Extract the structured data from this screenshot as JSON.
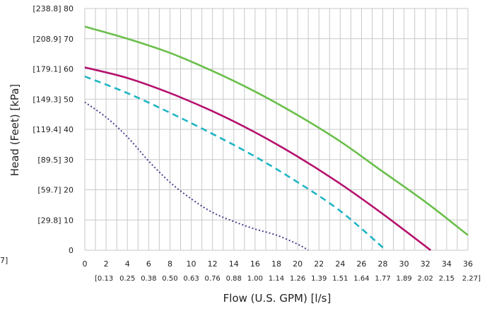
{
  "chart_data": {
    "type": "line",
    "xlabel": "Flow (U.S. GPM) [l/s]",
    "ylabel": "Head (Feet) [kPa]",
    "xlim": [
      0,
      36
    ],
    "ylim": [
      0,
      80
    ],
    "grid": true,
    "x_ticks": [
      "0",
      "2",
      "4",
      "6",
      "8",
      "10",
      "12",
      "14",
      "16",
      "18",
      "20",
      "22",
      "24",
      "26",
      "28",
      "30",
      "32",
      "34",
      "36"
    ],
    "x_ticks_secondary": [
      "[0.13",
      "0.25",
      "0.38",
      "0.50",
      "0.63",
      "0.76",
      "0.88",
      "1.00",
      "1.14",
      "1.26",
      "1.39",
      "1.51",
      "1.64",
      "1.77",
      "1.89",
      "2.02",
      "2.15",
      "2.27]"
    ],
    "y_ticks": [
      {
        "value": 0,
        "label": "0"
      },
      {
        "value": 10,
        "label": "[29.8] 10"
      },
      {
        "value": 20,
        "label": "[59.7] 20"
      },
      {
        "value": 30,
        "label": "[89.5]  30"
      },
      {
        "value": 40,
        "label": "[119.4] 40"
      },
      {
        "value": 50,
        "label": "[149.3] 50"
      },
      {
        "value": 60,
        "label": "[179.1] 60"
      },
      {
        "value": 70,
        "label": "[208.9] 70"
      },
      {
        "value": 80,
        "label": "[238.8] 80"
      }
    ],
    "left_edge_fragment": "7]",
    "series": [
      {
        "color": "#6abf4b",
        "dash": "solid",
        "x": [
          0,
          4,
          8,
          12,
          16,
          20,
          24,
          28,
          32,
          36
        ],
        "y": [
          74,
          70,
          65.3,
          59.3,
          52.5,
          44.7,
          36,
          26,
          16,
          5
        ]
      },
      {
        "color": "#b5126e",
        "dash": "solid",
        "x": [
          0,
          4,
          8,
          12,
          16,
          20,
          24,
          28,
          32.5
        ],
        "y": [
          60.5,
          57,
          52,
          46,
          39,
          31,
          22,
          12,
          0
        ]
      },
      {
        "color": "#1fb5c4",
        "dash": "dashed",
        "x": [
          0,
          4,
          8,
          12,
          16,
          20,
          24,
          28.3
        ],
        "y": [
          57.5,
          52,
          45.5,
          38.5,
          31,
          22.5,
          13,
          0
        ]
      },
      {
        "color": "#4b3d8f",
        "dash": "dotted",
        "x": [
          0,
          2,
          4,
          6,
          8,
          10,
          12,
          14,
          16,
          18,
          20,
          21
        ],
        "y": [
          49,
          44,
          37.5,
          29.5,
          22.5,
          17,
          12.5,
          9.5,
          7,
          5,
          2,
          0
        ]
      }
    ]
  }
}
